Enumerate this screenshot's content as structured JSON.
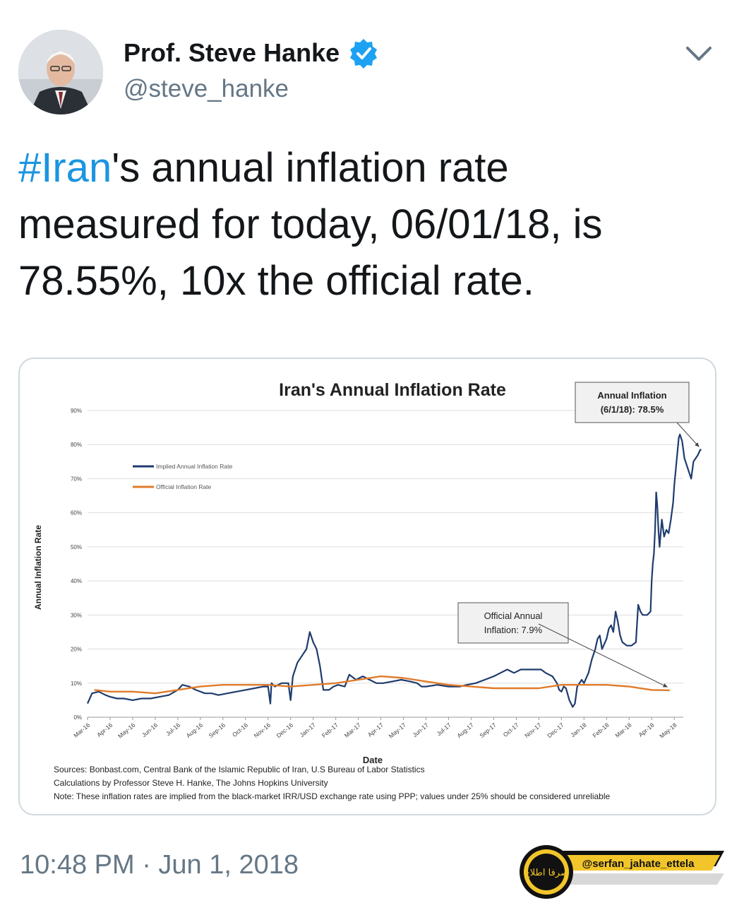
{
  "tweet": {
    "author_name": "Prof. Steve Hanke",
    "author_handle": "@steve_hanke",
    "text_hashtag": "#Iran",
    "text_line1_rest": "'s annual inflation rate",
    "text_line2": "measured for today, 06/01/18, is",
    "text_line3": "78.55%, 10x the official rate.",
    "timestamp": "10:48 PM · Jun 1, 2018"
  },
  "icons": {
    "verified": "verified-badge-icon",
    "menu": "chevron-down-icon",
    "watermark_logo": "serfan-logo-icon"
  },
  "colors": {
    "hashtag": "#1b95e0",
    "implied_series": "#1f3c6e",
    "official_series": "#e07b2a",
    "verified": "#1da1f2"
  },
  "watermark": {
    "handle": "@serfan_jahate_ettela",
    "logo_text": "صرفا اطلاع"
  },
  "chart_data": {
    "type": "line",
    "title": "Iran's Annual Inflation Rate",
    "xlabel": "Date",
    "ylabel": "Annual Inflation Rate",
    "ylim": [
      0,
      90
    ],
    "yticks": [
      "0%",
      "10%",
      "20%",
      "30%",
      "40%",
      "50%",
      "60%",
      "70%",
      "80%",
      "90%"
    ],
    "grid": true,
    "legend_placement": "top-left",
    "categories": [
      "Mar-16",
      "Apr-16",
      "May-16",
      "Jun-16",
      "Jul-16",
      "Aug-16",
      "Sep-16",
      "Oct-16",
      "Nov-16",
      "Dec-16",
      "Jan-17",
      "Feb-17",
      "Mar-17",
      "Apr-17",
      "May-17",
      "Jun-17",
      "Jul-17",
      "Aug-17",
      "Sep-17",
      "Oct-17",
      "Nov-17",
      "Dec-17",
      "Jan-18",
      "Feb-18",
      "Mar-18",
      "Apr-18",
      "May-18"
    ],
    "series": [
      {
        "name": "Implied Annual Inflation Rate",
        "color": "#1f3c6e",
        "points": [
          [
            0,
            4
          ],
          [
            0.2,
            7
          ],
          [
            0.5,
            7.5
          ],
          [
            0.8,
            6.5
          ],
          [
            1.0,
            6
          ],
          [
            1.3,
            5.5
          ],
          [
            1.6,
            5.5
          ],
          [
            2.0,
            5
          ],
          [
            2.4,
            5.5
          ],
          [
            2.8,
            5.5
          ],
          [
            3.2,
            6
          ],
          [
            3.6,
            6.5
          ],
          [
            4.0,
            8
          ],
          [
            4.2,
            9.5
          ],
          [
            4.5,
            9
          ],
          [
            4.8,
            8
          ],
          [
            5.2,
            7
          ],
          [
            5.5,
            7
          ],
          [
            5.8,
            6.5
          ],
          [
            6.2,
            7
          ],
          [
            6.6,
            7.5
          ],
          [
            7.0,
            8
          ],
          [
            7.4,
            8.5
          ],
          [
            7.8,
            9
          ],
          [
            8.0,
            9
          ],
          [
            8.1,
            4
          ],
          [
            8.15,
            10
          ],
          [
            8.3,
            9
          ],
          [
            8.6,
            10
          ],
          [
            8.9,
            10
          ],
          [
            9.0,
            5
          ],
          [
            9.1,
            12
          ],
          [
            9.3,
            16
          ],
          [
            9.5,
            18
          ],
          [
            9.7,
            20
          ],
          [
            9.85,
            25
          ],
          [
            10.0,
            22
          ],
          [
            10.15,
            20
          ],
          [
            10.3,
            15
          ],
          [
            10.45,
            8
          ],
          [
            10.7,
            8
          ],
          [
            10.9,
            9
          ],
          [
            11.1,
            9.5
          ],
          [
            11.4,
            9
          ],
          [
            11.6,
            12.5
          ],
          [
            11.9,
            11
          ],
          [
            12.2,
            12
          ],
          [
            12.5,
            11
          ],
          [
            12.8,
            10
          ],
          [
            13.1,
            10
          ],
          [
            13.5,
            10.5
          ],
          [
            13.9,
            11
          ],
          [
            14.3,
            10.5
          ],
          [
            14.6,
            10
          ],
          [
            14.8,
            9
          ],
          [
            15.0,
            9
          ],
          [
            15.5,
            9.5
          ],
          [
            16.0,
            9
          ],
          [
            16.5,
            9
          ],
          [
            16.8,
            9.5
          ],
          [
            17.2,
            10
          ],
          [
            17.6,
            11
          ],
          [
            18.0,
            12
          ],
          [
            18.3,
            13
          ],
          [
            18.6,
            14
          ],
          [
            18.9,
            13
          ],
          [
            19.2,
            14
          ],
          [
            19.5,
            14
          ],
          [
            19.8,
            14
          ],
          [
            20.1,
            14
          ],
          [
            20.3,
            13
          ],
          [
            20.6,
            12
          ],
          [
            20.8,
            10
          ],
          [
            20.9,
            8
          ],
          [
            21.0,
            7.5
          ],
          [
            21.1,
            9
          ],
          [
            21.2,
            8.5
          ],
          [
            21.35,
            5
          ],
          [
            21.5,
            3
          ],
          [
            21.6,
            4
          ],
          [
            21.7,
            9
          ],
          [
            21.9,
            11
          ],
          [
            22.0,
            10
          ],
          [
            22.2,
            13
          ],
          [
            22.35,
            17
          ],
          [
            22.5,
            20
          ],
          [
            22.6,
            23
          ],
          [
            22.7,
            24
          ],
          [
            22.8,
            20
          ],
          [
            23.0,
            23
          ],
          [
            23.1,
            26
          ],
          [
            23.2,
            27
          ],
          [
            23.3,
            25
          ],
          [
            23.4,
            31
          ],
          [
            23.5,
            28
          ],
          [
            23.6,
            24
          ],
          [
            23.7,
            22
          ],
          [
            23.9,
            21
          ],
          [
            24.1,
            21
          ],
          [
            24.3,
            22
          ],
          [
            24.4,
            33
          ],
          [
            24.5,
            31
          ],
          [
            24.6,
            30
          ],
          [
            24.8,
            30
          ],
          [
            24.95,
            31
          ],
          [
            25.0,
            40
          ],
          [
            25.05,
            45
          ],
          [
            25.1,
            48
          ],
          [
            25.15,
            55
          ],
          [
            25.2,
            66
          ],
          [
            25.25,
            62
          ],
          [
            25.3,
            55
          ],
          [
            25.35,
            50
          ],
          [
            25.45,
            58
          ],
          [
            25.55,
            53
          ],
          [
            25.65,
            55
          ],
          [
            25.75,
            54
          ],
          [
            25.85,
            58
          ],
          [
            25.95,
            63
          ],
          [
            26.0,
            68
          ],
          [
            26.1,
            75
          ],
          [
            26.2,
            82
          ],
          [
            26.25,
            83
          ],
          [
            26.35,
            81
          ],
          [
            26.45,
            76
          ],
          [
            26.55,
            74
          ],
          [
            26.65,
            72
          ],
          [
            26.75,
            70
          ],
          [
            26.85,
            75
          ],
          [
            26.95,
            76
          ],
          [
            27.05,
            77
          ],
          [
            27.15,
            78.5
          ],
          [
            27.2,
            78.5
          ]
        ]
      },
      {
        "name": "Official Inflation Rate",
        "color": "#e07b2a",
        "points": [
          [
            0.3,
            8
          ],
          [
            1.0,
            7.5
          ],
          [
            2.0,
            7.5
          ],
          [
            3.0,
            7
          ],
          [
            4.0,
            8
          ],
          [
            5.0,
            9
          ],
          [
            6.0,
            9.5
          ],
          [
            7.0,
            9.5
          ],
          [
            8.0,
            9.5
          ],
          [
            9.0,
            9
          ],
          [
            10.0,
            9.5
          ],
          [
            11.0,
            10
          ],
          [
            12.0,
            11
          ],
          [
            13.0,
            12
          ],
          [
            14.0,
            11.5
          ],
          [
            15.0,
            10.5
          ],
          [
            16.0,
            9.5
          ],
          [
            17.0,
            9
          ],
          [
            18.0,
            8.5
          ],
          [
            19.0,
            8.5
          ],
          [
            20.0,
            8.5
          ],
          [
            21.0,
            9.5
          ],
          [
            22.0,
            9.5
          ],
          [
            23.0,
            9.5
          ],
          [
            24.0,
            9
          ],
          [
            25.0,
            8
          ],
          [
            25.8,
            7.9
          ]
        ]
      }
    ],
    "annotations": [
      {
        "label_line1": "Annual Inflation",
        "label_line2": "(6/1/18): 78.5%",
        "points_to": [
          27.1,
          78.5
        ]
      },
      {
        "label_line1": "Official Annual",
        "label_line2": "Inflation: 7.9%",
        "points_to": [
          25.7,
          8
        ]
      }
    ],
    "notes": [
      "Sources: Bonbast.com, Central Bank of the Islamic Republic of Iran, U.S Bureau of Labor Statistics",
      "Calculations by Professor Steve H. Hanke, The Johns Hopkins University",
      "Note: These inflation rates are implied from the black-market IRR/USD exchange rate using PPP; values under 25% should be considered unreliable"
    ]
  }
}
